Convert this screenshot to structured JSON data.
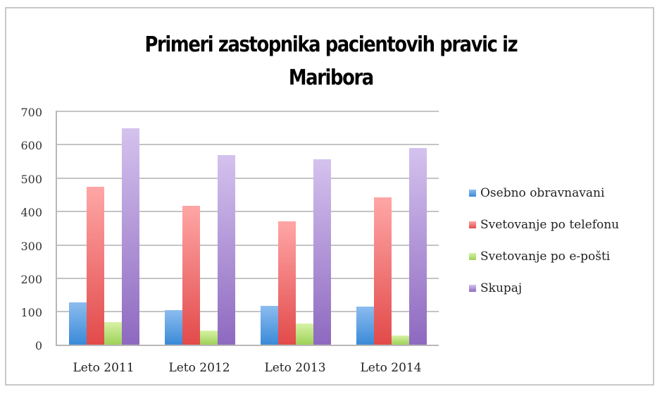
{
  "chart_data": {
    "type": "bar",
    "title": "Primeri zastopnika pacientovih pravic iz Maribora",
    "title_lines": [
      "Primeri zastopnika pacientovih pravic iz",
      "Maribora"
    ],
    "xlabel": "",
    "ylabel": "",
    "categories": [
      "Leto 2011",
      "Leto 2012",
      "Leto 2013",
      "Leto 2014"
    ],
    "series": [
      {
        "name": "Osebno obravnavani",
        "color": "#4a90d9",
        "values": [
          126,
          104,
          115,
          113
        ]
      },
      {
        "name": "Svetovanje po telefonu",
        "color": "#e64c4c",
        "values": [
          472,
          415,
          370,
          440
        ]
      },
      {
        "name": "Svetovanje po e-pošti",
        "color": "#a6d465",
        "values": [
          68,
          43,
          64,
          28
        ]
      },
      {
        "name": "Skupaj",
        "color": "#9a78c8",
        "values": [
          647,
          568,
          555,
          589
        ]
      }
    ],
    "ylim": [
      0,
      700
    ],
    "yticks": [
      "0",
      "100",
      "200",
      "300",
      "400",
      "500",
      "600",
      "700"
    ],
    "grid": true,
    "legend_position": "right"
  }
}
